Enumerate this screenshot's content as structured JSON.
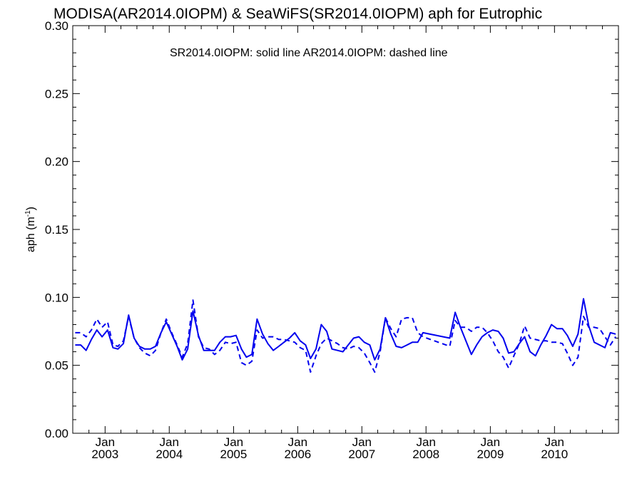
{
  "chart_data": {
    "type": "line",
    "title": "MODISA(AR2014.0IOPM) & SeaWiFS(SR2014.0IOPM)  aph for Eutrophic",
    "annotation": "SR2014.0IOPM: solid line   AR2014.0IOPM: dashed line",
    "ylabel": "aph (m",
    "ylabel_superscript": "-1",
    "ylabel_close": ")",
    "ylim": [
      0.0,
      0.3
    ],
    "yticks": [
      "0.00",
      "0.05",
      "0.10",
      "0.15",
      "0.20",
      "0.25",
      "0.30"
    ],
    "xlim": [
      "2002-07-01",
      "2010-12-31"
    ],
    "xtick_months": [
      "Jan",
      "Jan",
      "Jan",
      "Jan",
      "Jan",
      "Jan",
      "Jan",
      "Jan"
    ],
    "xtick_years": [
      "2003",
      "2004",
      "2005",
      "2006",
      "2007",
      "2008",
      "2009",
      "2010"
    ],
    "line_color": "#0000ee",
    "series": [
      {
        "name": "SR2014.0IOPM",
        "style": "solid",
        "x": [
          "2002-07",
          "2002-08",
          "2002-09",
          "2002-10",
          "2002-11",
          "2002-12",
          "2003-01",
          "2003-02",
          "2003-03",
          "2003-04",
          "2003-05",
          "2003-06",
          "2003-07",
          "2003-08",
          "2003-09",
          "2003-10",
          "2003-11",
          "2003-12",
          "2004-01",
          "2004-02",
          "2004-03",
          "2004-04",
          "2004-05",
          "2004-06",
          "2004-07",
          "2004-08",
          "2004-09",
          "2004-10",
          "2004-11",
          "2004-12",
          "2005-01",
          "2005-02",
          "2005-03",
          "2005-04",
          "2005-05",
          "2005-06",
          "2005-07",
          "2005-08",
          "2005-09",
          "2005-10",
          "2005-11",
          "2005-12",
          "2006-01",
          "2006-02",
          "2006-03",
          "2006-04",
          "2006-05",
          "2006-06",
          "2006-07",
          "2006-08",
          "2006-09",
          "2006-10",
          "2006-11",
          "2006-12",
          "2007-01",
          "2007-02",
          "2007-03",
          "2007-04",
          "2007-05",
          "2007-06",
          "2007-07",
          "2007-08",
          "2007-09",
          "2007-10",
          "2007-11",
          "2007-12",
          "2008-05",
          "2008-06",
          "2008-07",
          "2008-08",
          "2008-09",
          "2008-10",
          "2008-11",
          "2008-12",
          "2009-01",
          "2009-02",
          "2009-03",
          "2009-04",
          "2009-05",
          "2009-06",
          "2009-07",
          "2009-08",
          "2009-09",
          "2009-10",
          "2009-11",
          "2009-12",
          "2010-01",
          "2010-02",
          "2010-03",
          "2010-04",
          "2010-05",
          "2010-06",
          "2010-07",
          "2010-08",
          "2010-09",
          "2010-10",
          "2010-11",
          "2010-12"
        ],
        "y": [
          0.065,
          0.065,
          0.061,
          0.069,
          0.076,
          0.071,
          0.076,
          0.063,
          0.062,
          0.066,
          0.087,
          0.07,
          0.064,
          0.062,
          0.062,
          0.064,
          0.074,
          0.082,
          0.073,
          0.064,
          0.054,
          0.062,
          0.09,
          0.072,
          0.061,
          0.061,
          0.061,
          0.067,
          0.071,
          0.071,
          0.072,
          0.062,
          0.056,
          0.058,
          0.084,
          0.073,
          0.066,
          0.061,
          0.064,
          0.067,
          0.07,
          0.074,
          0.068,
          0.065,
          0.055,
          0.062,
          0.08,
          0.075,
          0.062,
          0.061,
          0.06,
          0.065,
          0.07,
          0.071,
          0.067,
          0.065,
          0.054,
          0.062,
          0.085,
          0.073,
          0.064,
          0.063,
          0.065,
          0.067,
          0.067,
          0.074,
          0.07,
          0.089,
          0.078,
          0.068,
          0.058,
          0.065,
          0.071,
          0.074,
          0.076,
          0.075,
          0.07,
          0.059,
          0.06,
          0.066,
          0.071,
          0.06,
          0.057,
          0.065,
          0.072,
          0.08,
          0.077,
          0.077,
          0.072,
          0.064,
          0.073,
          0.099,
          0.079,
          0.067,
          0.065,
          0.063,
          0.074,
          0.073
        ]
      },
      {
        "name": "AR2014.0IOPM",
        "style": "dashed",
        "x": [
          "2002-07",
          "2002-08",
          "2002-09",
          "2002-10",
          "2002-11",
          "2002-12",
          "2003-01",
          "2003-02",
          "2003-03",
          "2003-04",
          "2003-05",
          "2003-06",
          "2003-07",
          "2003-08",
          "2003-09",
          "2003-10",
          "2003-11",
          "2003-12",
          "2004-01",
          "2004-02",
          "2004-03",
          "2004-04",
          "2004-05",
          "2004-06",
          "2004-07",
          "2004-08",
          "2004-09",
          "2004-10",
          "2004-11",
          "2004-12",
          "2005-01",
          "2005-02",
          "2005-03",
          "2005-04",
          "2005-05",
          "2005-06",
          "2005-07",
          "2005-08",
          "2005-09",
          "2005-10",
          "2005-11",
          "2005-12",
          "2006-01",
          "2006-02",
          "2006-03",
          "2006-04",
          "2006-05",
          "2006-06",
          "2006-07",
          "2006-08",
          "2006-09",
          "2006-10",
          "2006-11",
          "2006-12",
          "2007-01",
          "2007-02",
          "2007-03",
          "2007-04",
          "2007-05",
          "2007-06",
          "2007-07",
          "2007-08",
          "2007-09",
          "2007-10",
          "2007-11",
          "2007-12",
          "2008-05",
          "2008-06",
          "2008-07",
          "2008-08",
          "2008-09",
          "2008-10",
          "2008-11",
          "2008-12",
          "2009-01",
          "2009-02",
          "2009-03",
          "2009-04",
          "2009-05",
          "2009-06",
          "2009-07",
          "2009-08",
          "2009-09",
          "2009-10",
          "2009-11",
          "2009-12",
          "2010-01",
          "2010-02",
          "2010-03",
          "2010-04",
          "2010-05",
          "2010-06",
          "2010-07",
          "2010-08",
          "2010-09",
          "2010-10",
          "2010-11",
          "2010-12"
        ],
        "y": [
          0.074,
          0.074,
          0.071,
          0.076,
          0.084,
          0.078,
          0.082,
          0.065,
          0.064,
          0.068,
          0.086,
          0.07,
          0.063,
          0.059,
          0.057,
          0.061,
          0.074,
          0.084,
          0.074,
          0.065,
          0.056,
          0.066,
          0.098,
          0.071,
          0.063,
          0.062,
          0.058,
          0.061,
          0.067,
          0.066,
          0.067,
          0.052,
          0.05,
          0.053,
          0.076,
          0.07,
          0.071,
          0.071,
          0.069,
          0.069,
          0.068,
          0.067,
          0.063,
          0.061,
          0.045,
          0.057,
          0.066,
          0.07,
          0.068,
          0.066,
          0.063,
          0.062,
          0.064,
          0.063,
          0.059,
          0.052,
          0.045,
          0.06,
          0.085,
          0.077,
          0.071,
          0.084,
          0.085,
          0.085,
          0.074,
          0.071,
          0.064,
          0.083,
          0.078,
          0.078,
          0.075,
          0.078,
          0.078,
          0.074,
          0.068,
          0.06,
          0.056,
          0.048,
          0.057,
          0.066,
          0.079,
          0.07,
          0.069,
          0.068,
          0.068,
          0.067,
          0.067,
          0.066,
          0.059,
          0.05,
          0.056,
          0.086,
          0.078,
          0.078,
          0.077,
          0.071,
          0.065,
          0.071
        ]
      }
    ]
  }
}
